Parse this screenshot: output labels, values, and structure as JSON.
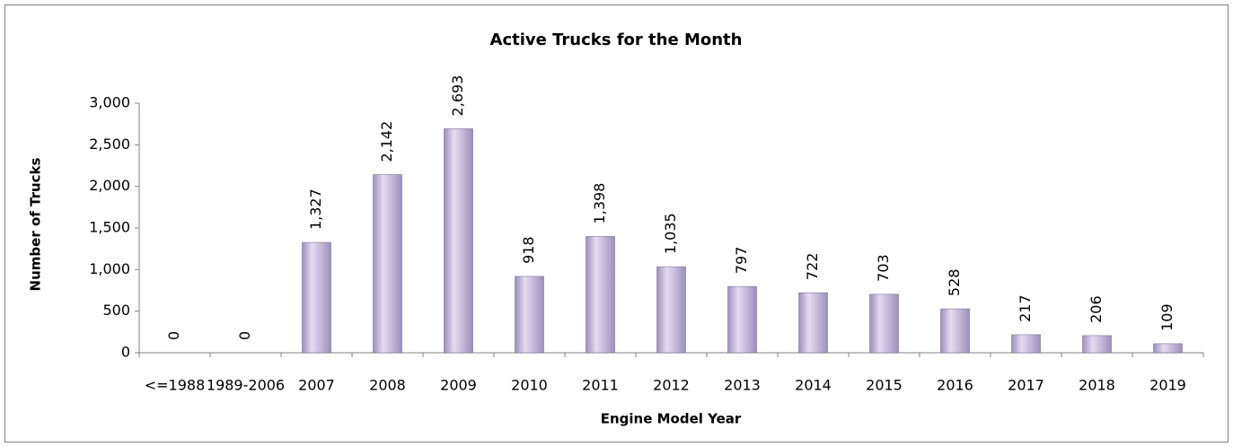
{
  "chart_data": {
    "type": "bar",
    "title": "Active Trucks for the Month",
    "x_label": "Engine Model Year",
    "y_label": "Number of Trucks",
    "categories": [
      "<=1988",
      "1989-2006",
      "2007",
      "2008",
      "2009",
      "2010",
      "2011",
      "2012",
      "2013",
      "2014",
      "2015",
      "2016",
      "2017",
      "2018",
      "2019"
    ],
    "values": [
      0,
      0,
      1327,
      2142,
      2693,
      918,
      1398,
      1035,
      797,
      722,
      703,
      528,
      217,
      206,
      109
    ],
    "value_labels": [
      "0",
      "0",
      "1,327",
      "2,142",
      "2,693",
      "918",
      "1,398",
      "1,035",
      "797",
      "722",
      "703",
      "528",
      "217",
      "206",
      "109"
    ],
    "color": "#9d8fbd",
    "ylim": [
      0,
      3000
    ],
    "yticks": [
      0,
      500,
      {
        "value": 1000,
        "label": "1,000"
      },
      {
        "value": 1500,
        "label": "1,500"
      },
      {
        "value": 2000,
        "label": "2,000"
      },
      {
        "value": 2500,
        "label": "2,500"
      },
      {
        "value": 3000,
        "label": "3,000"
      }
    ],
    "grid": false
  }
}
